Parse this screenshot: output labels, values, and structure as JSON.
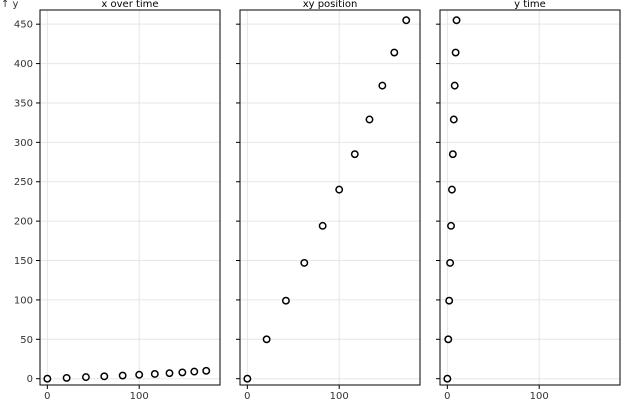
{
  "chart_data": {
    "type": "scatter",
    "y_axis_label": "↑ y",
    "panels": [
      {
        "title": "x over time",
        "xlim": [
          -8,
          188
        ],
        "ylim": [
          -8,
          468
        ],
        "x_ticks": [
          0,
          100
        ],
        "y_ticks": [
          0,
          50,
          100,
          150,
          200,
          250,
          300,
          350,
          400,
          450
        ],
        "show_y_tick_labels": true,
        "points": [
          {
            "x": 0,
            "y": 0
          },
          {
            "x": 21,
            "y": 1
          },
          {
            "x": 42,
            "y": 2
          },
          {
            "x": 62,
            "y": 3
          },
          {
            "x": 82,
            "y": 4
          },
          {
            "x": 100,
            "y": 5
          },
          {
            "x": 117,
            "y": 6
          },
          {
            "x": 133,
            "y": 7
          },
          {
            "x": 147,
            "y": 8
          },
          {
            "x": 160,
            "y": 9
          },
          {
            "x": 173,
            "y": 10
          }
        ]
      },
      {
        "title": "xy position",
        "xlim": [
          -8,
          188
        ],
        "ylim": [
          -8,
          468
        ],
        "x_ticks": [
          0,
          100
        ],
        "y_ticks": [
          0,
          50,
          100,
          150,
          200,
          250,
          300,
          350,
          400,
          450
        ],
        "show_y_tick_labels": false,
        "points": [
          {
            "x": 0,
            "y": 0
          },
          {
            "x": 21,
            "y": 50
          },
          {
            "x": 42,
            "y": 99
          },
          {
            "x": 62,
            "y": 147
          },
          {
            "x": 82,
            "y": 194
          },
          {
            "x": 100,
            "y": 240
          },
          {
            "x": 117,
            "y": 285
          },
          {
            "x": 133,
            "y": 329
          },
          {
            "x": 147,
            "y": 372
          },
          {
            "x": 160,
            "y": 414
          },
          {
            "x": 173,
            "y": 455
          }
        ]
      },
      {
        "title": "y time",
        "xlim": [
          -8,
          188
        ],
        "ylim": [
          -8,
          468
        ],
        "x_ticks": [
          0,
          100
        ],
        "y_ticks": [
          0,
          50,
          100,
          150,
          200,
          250,
          300,
          350,
          400,
          450
        ],
        "show_y_tick_labels": false,
        "points": [
          {
            "x": 0,
            "y": 0
          },
          {
            "x": 1,
            "y": 50
          },
          {
            "x": 2,
            "y": 99
          },
          {
            "x": 3,
            "y": 147
          },
          {
            "x": 4,
            "y": 194
          },
          {
            "x": 5,
            "y": 240
          },
          {
            "x": 6,
            "y": 285
          },
          {
            "x": 7,
            "y": 329
          },
          {
            "x": 8,
            "y": 372
          },
          {
            "x": 9,
            "y": 414
          },
          {
            "x": 10,
            "y": 455
          }
        ]
      }
    ]
  }
}
